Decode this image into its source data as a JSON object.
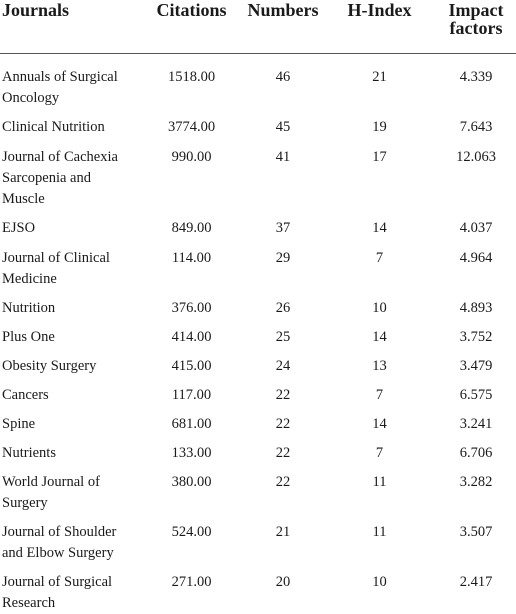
{
  "table": {
    "headers": {
      "journal": "Journals",
      "citations": "Citations",
      "numbers": "Numbers",
      "hindex": "H-Index",
      "impact_line1": "Impact",
      "impact_line2": "factors"
    },
    "rows": [
      {
        "journal": "Annuals of Surgical Oncology",
        "citations": "1518.00",
        "numbers": "46",
        "hindex": "21",
        "impact": "4.339"
      },
      {
        "journal": "Clinical Nutrition",
        "citations": "3774.00",
        "numbers": "45",
        "hindex": "19",
        "impact": "7.643"
      },
      {
        "journal": "Journal of Cachexia Sarcopenia and Muscle",
        "citations": "990.00",
        "numbers": "41",
        "hindex": "17",
        "impact": "12.063"
      },
      {
        "journal": "EJSO",
        "citations": "849.00",
        "numbers": "37",
        "hindex": "14",
        "impact": "4.037"
      },
      {
        "journal": "Journal of Clinical Medicine",
        "citations": "114.00",
        "numbers": "29",
        "hindex": "7",
        "impact": "4.964"
      },
      {
        "journal": "Nutrition",
        "citations": "376.00",
        "numbers": "26",
        "hindex": "10",
        "impact": "4.893"
      },
      {
        "journal": "Plus One",
        "citations": "414.00",
        "numbers": "25",
        "hindex": "14",
        "impact": "3.752"
      },
      {
        "journal": "Obesity Surgery",
        "citations": "415.00",
        "numbers": "24",
        "hindex": "13",
        "impact": "3.479"
      },
      {
        "journal": "Cancers",
        "citations": "117.00",
        "numbers": "22",
        "hindex": "7",
        "impact": "6.575"
      },
      {
        "journal": "Spine",
        "citations": "681.00",
        "numbers": "22",
        "hindex": "14",
        "impact": "3.241"
      },
      {
        "journal": "Nutrients",
        "citations": "133.00",
        "numbers": "22",
        "hindex": "7",
        "impact": "6.706"
      },
      {
        "journal": "World Journal of Surgery",
        "citations": "380.00",
        "numbers": "22",
        "hindex": "11",
        "impact": "3.282"
      },
      {
        "journal": "Journal of Shoulder and Elbow Surgery",
        "citations": "524.00",
        "numbers": "21",
        "hindex": "11",
        "impact": "3.507"
      },
      {
        "journal": "Journal of Surgical Research",
        "citations": "271.00",
        "numbers": "20",
        "hindex": "10",
        "impact": "2.417"
      }
    ]
  }
}
